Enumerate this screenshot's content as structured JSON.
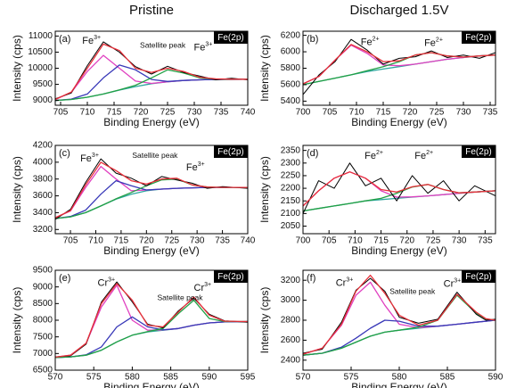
{
  "column_titles": [
    "Pristine",
    "Discharged 1.5V"
  ],
  "chart_data": [
    {
      "type": "line",
      "panel_label": "(a)",
      "badge": "Fe(2p)",
      "x_label": "Binding Energy (eV)",
      "y_label": "Intensity (cps)",
      "xlim": [
        704,
        740
      ],
      "xticks": [
        705,
        710,
        715,
        720,
        725,
        730,
        735,
        740
      ],
      "ylim": [
        8850,
        11150
      ],
      "yticks": [
        9000,
        9500,
        10000,
        10500,
        11000
      ],
      "annotations": [
        {
          "text": "Fe",
          "sup": "3+"
        },
        {
          "text": "Satellite peak"
        },
        {
          "text": "Fe",
          "sup": "3+"
        }
      ],
      "x": [
        704,
        707,
        710,
        713,
        716,
        719,
        722,
        725,
        728,
        731,
        734,
        737,
        740
      ],
      "series": [
        {
          "color": "#2fa7a0",
          "values": [
            9000,
            9030,
            9100,
            9200,
            9320,
            9430,
            9520,
            9580,
            9620,
            9640,
            9650,
            9655,
            9660
          ]
        },
        {
          "color": "#e040c0",
          "values": [
            9030,
            9250,
            9900,
            10400,
            10000,
            9600,
            9530,
            9580,
            9620,
            9640,
            9650,
            9655,
            9660
          ]
        },
        {
          "color": "#3838b8",
          "values": [
            9000,
            9040,
            9200,
            9700,
            10100,
            9950,
            9650,
            9590,
            9620,
            9640,
            9650,
            9655,
            9660
          ]
        },
        {
          "color": "#22a045",
          "values": [
            9000,
            9030,
            9100,
            9200,
            9330,
            9470,
            9700,
            9950,
            9850,
            9700,
            9660,
            9655,
            9660
          ]
        },
        {
          "color": "#000000",
          "values": [
            9050,
            9230,
            10080,
            10820,
            10500,
            10050,
            9820,
            10060,
            9870,
            9760,
            9640,
            9690,
            9640
          ]
        },
        {
          "color": "#e8303a",
          "values": [
            9030,
            9260,
            10000,
            10750,
            10550,
            10000,
            9870,
            10000,
            9900,
            9720,
            9670,
            9660,
            9660
          ]
        }
      ]
    },
    {
      "type": "line",
      "panel_label": "(b)",
      "badge": "Fe(2p)",
      "x_label": "Binding Energy (eV)",
      "y_label": "Intensity (cps)",
      "xlim": [
        700,
        736
      ],
      "xticks": [
        700,
        705,
        710,
        715,
        720,
        725,
        730,
        735
      ],
      "ylim": [
        5350,
        6250
      ],
      "yticks": [
        5400,
        5600,
        5800,
        6000,
        6200
      ],
      "annotations": [
        {
          "text": "Fe",
          "sup": "2+"
        },
        {
          "text": "Fe",
          "sup": "2+"
        }
      ],
      "x": [
        700,
        703,
        706,
        709,
        712,
        715,
        718,
        721,
        724,
        727,
        730,
        733,
        736
      ],
      "series": [
        {
          "color": "#2fa7a0",
          "values": [
            5600,
            5640,
            5680,
            5720,
            5760,
            5790,
            5820,
            5850,
            5880,
            5910,
            5930,
            5950,
            5960
          ]
        },
        {
          "color": "#e040c0",
          "values": [
            5610,
            5700,
            5900,
            6080,
            5980,
            5840,
            5830,
            5850,
            5880,
            5910,
            5930,
            5950,
            5960
          ]
        },
        {
          "color": "#22a045",
          "values": [
            5600,
            5640,
            5680,
            5720,
            5770,
            5820,
            5880,
            5960,
            5990,
            5950,
            5935,
            5950,
            5960
          ]
        },
        {
          "color": "#000000",
          "values": [
            5480,
            5720,
            5880,
            6150,
            6020,
            5850,
            5920,
            5940,
            6010,
            5930,
            5960,
            5920,
            5990
          ]
        },
        {
          "color": "#e8303a",
          "values": [
            5610,
            5700,
            5900,
            6090,
            6000,
            5880,
            5890,
            5960,
            5990,
            5950,
            5935,
            5950,
            5960
          ]
        }
      ]
    },
    {
      "type": "line",
      "panel_label": "(c)",
      "badge": "Fe(2p)",
      "x_label": "Binding Energy (eV)",
      "y_label": "Intensity (cps)",
      "xlim": [
        702,
        740
      ],
      "xticks": [
        705,
        710,
        715,
        720,
        725,
        730,
        735,
        740
      ],
      "ylim": [
        3150,
        4200
      ],
      "yticks": [
        3200,
        3400,
        3600,
        3800,
        4000,
        4200
      ],
      "annotations": [
        {
          "text": "Fe",
          "sup": "3+"
        },
        {
          "text": "Satellite peak"
        },
        {
          "text": "Fe",
          "sup": "3+"
        }
      ],
      "x": [
        702,
        705,
        708,
        711,
        714,
        717,
        720,
        723,
        726,
        729,
        732,
        735,
        740
      ],
      "series": [
        {
          "color": "#2fa7a0",
          "values": [
            3330,
            3350,
            3400,
            3480,
            3560,
            3620,
            3660,
            3680,
            3690,
            3695,
            3700,
            3700,
            3700
          ]
        },
        {
          "color": "#e040c0",
          "values": [
            3340,
            3420,
            3700,
            3950,
            3800,
            3660,
            3670,
            3680,
            3690,
            3695,
            3700,
            3700,
            3700
          ]
        },
        {
          "color": "#3838b8",
          "values": [
            3330,
            3355,
            3430,
            3620,
            3780,
            3720,
            3670,
            3680,
            3690,
            3695,
            3700,
            3700,
            3700
          ]
        },
        {
          "color": "#22a045",
          "values": [
            3330,
            3350,
            3400,
            3480,
            3565,
            3640,
            3720,
            3790,
            3800,
            3730,
            3705,
            3700,
            3700
          ]
        },
        {
          "color": "#000000",
          "values": [
            3320,
            3440,
            3760,
            4040,
            3870,
            3810,
            3720,
            3830,
            3790,
            3750,
            3690,
            3710,
            3690
          ]
        },
        {
          "color": "#e8303a",
          "values": [
            3340,
            3425,
            3730,
            4000,
            3900,
            3780,
            3740,
            3800,
            3810,
            3730,
            3705,
            3700,
            3700
          ]
        }
      ]
    },
    {
      "type": "line",
      "panel_label": "(d)",
      "badge": "Fe(2p)",
      "x_label": "Binding Energy (eV)",
      "y_label": "Intensity (cps)",
      "xlim": [
        700,
        737
      ],
      "xticks": [
        700,
        705,
        710,
        715,
        720,
        725,
        730,
        735
      ],
      "ylim": [
        2020,
        2370
      ],
      "yticks": [
        2050,
        2100,
        2150,
        2200,
        2250,
        2300,
        2350
      ],
      "annotations": [
        {
          "text": "Fe",
          "sup": "2+"
        },
        {
          "text": "Fe",
          "sup": "2+"
        }
      ],
      "x": [
        700,
        703,
        706,
        709,
        712,
        715,
        718,
        721,
        724,
        727,
        730,
        733,
        737
      ],
      "series": [
        {
          "color": "#2fa7a0",
          "values": [
            2110,
            2120,
            2130,
            2140,
            2150,
            2155,
            2160,
            2165,
            2170,
            2175,
            2180,
            2185,
            2190
          ]
        },
        {
          "color": "#e040c0",
          "values": [
            2130,
            2190,
            2240,
            2265,
            2240,
            2190,
            2165,
            2166,
            2170,
            2175,
            2180,
            2185,
            2190
          ]
        },
        {
          "color": "#22a045",
          "values": [
            2110,
            2120,
            2130,
            2140,
            2150,
            2160,
            2180,
            2205,
            2215,
            2195,
            2182,
            2185,
            2190
          ]
        },
        {
          "color": "#000000",
          "values": [
            2100,
            2230,
            2200,
            2300,
            2210,
            2240,
            2150,
            2250,
            2180,
            2230,
            2150,
            2210,
            2170
          ]
        },
        {
          "color": "#e8303a",
          "values": [
            2130,
            2190,
            2240,
            2265,
            2240,
            2195,
            2185,
            2206,
            2215,
            2195,
            2182,
            2185,
            2190
          ]
        }
      ]
    },
    {
      "type": "line",
      "panel_label": "(e)",
      "badge": "Fe(2p)",
      "x_label": "Binding Energy (eV)",
      "y_label": "Intensity (cps)",
      "xlim": [
        570,
        595
      ],
      "xticks": [
        570,
        575,
        580,
        585,
        590,
        595
      ],
      "ylim": [
        6500,
        9500
      ],
      "yticks": [
        6500,
        7000,
        7500,
        8000,
        8500,
        9000,
        9500
      ],
      "annotations": [
        {
          "text": "Cr",
          "sup": "3+"
        },
        {
          "text": "Satellite peak"
        },
        {
          "text": "Cr",
          "sup": "3+"
        }
      ],
      "x": [
        570,
        572,
        574,
        576,
        578,
        580,
        582,
        584,
        586,
        588,
        590,
        592,
        595
      ],
      "series": [
        {
          "color": "#2fa7a0",
          "values": [
            6880,
            6900,
            6950,
            7100,
            7350,
            7550,
            7650,
            7700,
            7750,
            7850,
            7920,
            7950,
            7960
          ]
        },
        {
          "color": "#e040c0",
          "values": [
            6890,
            6950,
            7300,
            8400,
            9050,
            8000,
            7700,
            7710,
            7750,
            7850,
            7920,
            7950,
            7960
          ]
        },
        {
          "color": "#3838b8",
          "values": [
            6880,
            6900,
            6960,
            7200,
            7800,
            8100,
            7800,
            7710,
            7750,
            7850,
            7920,
            7950,
            7960
          ]
        },
        {
          "color": "#22a045",
          "values": [
            6880,
            6900,
            6950,
            7100,
            7350,
            7550,
            7660,
            7750,
            8200,
            8600,
            8050,
            7960,
            7960
          ]
        },
        {
          "color": "#000000",
          "values": [
            6900,
            6930,
            7280,
            8550,
            9150,
            8550,
            7880,
            7770,
            8280,
            8660,
            8180,
            7980,
            7940
          ]
        },
        {
          "color": "#e8303a",
          "values": [
            6890,
            6950,
            7310,
            8500,
            9100,
            8600,
            7850,
            7800,
            8250,
            8700,
            8150,
            7970,
            7960
          ]
        }
      ]
    },
    {
      "type": "line",
      "panel_label": "(f)",
      "badge": "Fe(2p)",
      "x_label": "Binding Energy (eV)",
      "y_label": "Intensity (cps)",
      "xlim": [
        570,
        590
      ],
      "xticks": [
        570,
        575,
        580,
        585,
        590
      ],
      "ylim": [
        2300,
        3300
      ],
      "yticks": [
        2400,
        2600,
        2800,
        3000,
        3200
      ],
      "annotations": [
        {
          "text": "Cr",
          "sup": "3+"
        },
        {
          "text": "Satellite peak"
        },
        {
          "text": "Cr",
          "sup": "3+"
        }
      ],
      "x": [
        570,
        572,
        574,
        575.5,
        577,
        578.5,
        580,
        582,
        584,
        586,
        588,
        589,
        590
      ],
      "series": [
        {
          "color": "#2fa7a0",
          "values": [
            2450,
            2470,
            2520,
            2580,
            2640,
            2680,
            2700,
            2720,
            2740,
            2760,
            2780,
            2790,
            2800
          ]
        },
        {
          "color": "#e040c0",
          "values": [
            2460,
            2520,
            2750,
            3050,
            3180,
            2950,
            2760,
            2725,
            2740,
            2760,
            2780,
            2790,
            2800
          ]
        },
        {
          "color": "#3838b8",
          "values": [
            2450,
            2470,
            2530,
            2620,
            2720,
            2800,
            2790,
            2740,
            2740,
            2760,
            2780,
            2790,
            2800
          ]
        },
        {
          "color": "#22a045",
          "values": [
            2450,
            2470,
            2520,
            2580,
            2640,
            2680,
            2700,
            2730,
            2800,
            3050,
            2870,
            2810,
            2800
          ]
        },
        {
          "color": "#000000",
          "values": [
            2470,
            2510,
            2780,
            3100,
            3220,
            3090,
            2830,
            2770,
            2810,
            3080,
            2860,
            2800,
            2810
          ]
        },
        {
          "color": "#e8303a",
          "values": [
            2460,
            2520,
            2760,
            3090,
            3250,
            3070,
            2850,
            2750,
            2800,
            3060,
            2880,
            2815,
            2800
          ]
        }
      ]
    }
  ]
}
